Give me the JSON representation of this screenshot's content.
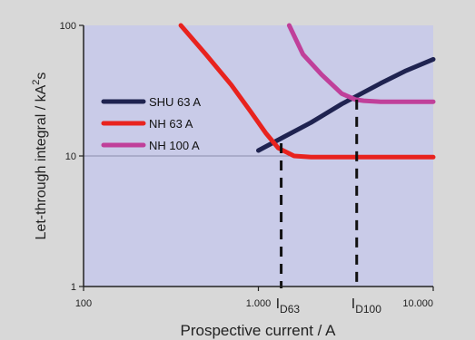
{
  "chart_data": {
    "type": "line",
    "title": "",
    "xlabel": "Prospective current / A",
    "ylabel_main": "Let-through integral / kA",
    "ylabel_sup": "2",
    "ylabel_tail": "s",
    "x_scale": "log",
    "y_scale": "log",
    "xlim": [
      100,
      10000
    ],
    "ylim": [
      1,
      100
    ],
    "x_ticks": [
      {
        "value": 100,
        "label": "100"
      },
      {
        "value": 1000,
        "label": "1.000"
      },
      {
        "value": 10000,
        "label": "10.000"
      }
    ],
    "y_ticks": [
      {
        "value": 1,
        "label": "1"
      },
      {
        "value": 10,
        "label": "10"
      },
      {
        "value": 100,
        "label": "100"
      }
    ],
    "grid": "horizontal line at 10",
    "legend_position": "upper-left",
    "series": [
      {
        "name": "SHU 63 A",
        "color": "#1f2350",
        "points": [
          [
            1000,
            11
          ],
          [
            1400,
            14
          ],
          [
            2000,
            18
          ],
          [
            3000,
            25
          ],
          [
            5000,
            36
          ],
          [
            7000,
            45
          ],
          [
            10000,
            55
          ]
        ]
      },
      {
        "name": "NH 63 A",
        "color": "#e8231e",
        "points": [
          [
            360,
            100
          ],
          [
            500,
            60
          ],
          [
            700,
            35
          ],
          [
            900,
            22
          ],
          [
            1100,
            15
          ],
          [
            1300,
            11.5
          ],
          [
            1600,
            10
          ],
          [
            2000,
            9.8
          ],
          [
            10000,
            9.8
          ]
        ]
      },
      {
        "name": "NH 100 A",
        "color": "#c0409a",
        "points": [
          [
            1500,
            100
          ],
          [
            1800,
            60
          ],
          [
            2300,
            42
          ],
          [
            3000,
            30
          ],
          [
            3600,
            27
          ],
          [
            4000,
            26.5
          ],
          [
            5000,
            26
          ],
          [
            7000,
            26
          ],
          [
            10000,
            26
          ]
        ]
      }
    ],
    "markers": [
      {
        "name": "I",
        "sub": "D63",
        "x": 1350,
        "y": 12.5
      },
      {
        "name": "I",
        "sub": "D100",
        "x": 3650,
        "y": 27
      }
    ]
  },
  "colors": {
    "page_background": "#d8d8d8",
    "plot_background": "#c9cbe8",
    "axis": "#222222",
    "gridline": "#8a8cab",
    "marker_line": "#111111"
  }
}
